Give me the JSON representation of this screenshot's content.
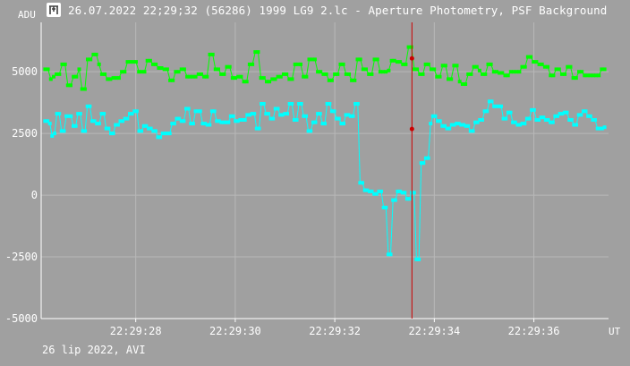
{
  "window": {
    "title": "26.07.2022 22;29;32 (56286) 1999 LG9 2.lc - Aperture Photometry, PSF Background",
    "icon": "telescope-icon"
  },
  "footer": {
    "text": "26 lip 2022, AVI"
  },
  "colors": {
    "background": "#a0a0a0",
    "grid": "#b8b8b8",
    "axis": "#ffffff",
    "series_green": "#00ff00",
    "series_cyan": "#00ffff",
    "cursor": "#cc0000"
  },
  "chart_data": {
    "type": "line",
    "ylabel": "ADU",
    "xunit": "UT",
    "ylim": [
      -5000,
      7000
    ],
    "yticks": [
      -5000,
      -2500,
      0,
      2500,
      5000
    ],
    "ytick_labels": [
      "-5000",
      "-2500",
      "0",
      "2500",
      "5000"
    ],
    "xlim": [
      26.1,
      37.5
    ],
    "xticks": [
      28,
      30,
      32,
      34,
      36
    ],
    "xtick_labels": [
      "22:29:28",
      "22:29:30",
      "22:29:32",
      "22:29:34",
      "22:29:36"
    ],
    "grid": true,
    "cursor_x": 33.55,
    "cursor_markers": [
      5540,
      2680
    ],
    "series": [
      {
        "color": "#00ff00",
        "values": [
          5100,
          5100,
          4700,
          4800,
          4900,
          4900,
          5300,
          5300,
          4450,
          4450,
          4800,
          4800,
          5100,
          4300,
          4300,
          5500,
          5500,
          5700,
          5700,
          5300,
          4900,
          4900,
          4700,
          4700,
          4750,
          4750,
          4750,
          5000,
          5000,
          5400,
          5400,
          5400,
          5400,
          5000,
          5000,
          5000,
          5450,
          5450,
          5300,
          5300,
          5150,
          5150,
          5100,
          5100,
          4650,
          4650,
          5000,
          5000,
          5100,
          5100,
          4800,
          4800,
          4800,
          4800,
          4900,
          4900,
          4800,
          4800,
          5700,
          5700,
          5100,
          5100,
          4900,
          4900,
          5200,
          5200,
          4750,
          4750,
          4800,
          4800,
          4600,
          4600,
          5300,
          5300,
          5800,
          5800,
          4750,
          4750,
          4600,
          4600,
          4700,
          4700,
          4800,
          4800,
          4900,
          4900,
          4700,
          4700,
          5300,
          5300,
          5300,
          4800,
          4800,
          5500,
          5500,
          5500,
          5000,
          5000,
          4900,
          4900,
          4650,
          4650,
          4900,
          4900,
          5300,
          5300,
          4900,
          4900,
          4650,
          4650,
          5500,
          5500,
          5100,
          5100,
          4900,
          4900,
          5500,
          5500,
          5000,
          5000,
          5000,
          5050,
          5450,
          5450,
          5400,
          5400,
          5300,
          5300,
          6000,
          6000,
          5100,
          5100,
          4900,
          4900,
          5300,
          5300,
          5100,
          5100,
          4800,
          4800,
          5250,
          5250,
          4700,
          4700,
          5250,
          5250,
          4600,
          4500,
          4500,
          4900,
          4900,
          5200,
          5200,
          5050,
          4900,
          4900,
          5300,
          5300,
          5000,
          5000,
          4950,
          4950,
          4850,
          4850,
          5000,
          5000,
          5000,
          5000,
          5200,
          5200,
          5600,
          5600,
          5400,
          5400,
          5300,
          5300,
          5200,
          5200,
          4850,
          4850,
          5100,
          5100,
          4900,
          4900,
          5200,
          5200,
          4750,
          4750,
          5000,
          5000,
          4850,
          4850,
          4850,
          4850,
          4850,
          4850,
          5100,
          5100
        ]
      },
      {
        "color": "#00ffff",
        "values": [
          3000,
          3000,
          2900,
          2400,
          2500,
          3300,
          3300,
          2600,
          2600,
          3200,
          3200,
          3200,
          2800,
          2800,
          3300,
          3300,
          2600,
          2600,
          3600,
          3600,
          3000,
          3000,
          2900,
          2900,
          3300,
          3300,
          2700,
          2700,
          2500,
          2500,
          2850,
          2850,
          3000,
          3000,
          3100,
          3100,
          3300,
          3300,
          3400,
          3400,
          2600,
          2600,
          2800,
          2800,
          2700,
          2700,
          2600,
          2600,
          2350,
          2350,
          2500,
          2500,
          2500,
          2500,
          2900,
          2900,
          3100,
          3100,
          3000,
          3000,
          3500,
          3500,
          2900,
          2900,
          3400,
          3400,
          3400,
          2900,
          2900,
          2850,
          2850,
          3400,
          3400,
          3000,
          3000,
          2950,
          2950,
          2950,
          2950,
          3200,
          3200,
          3000,
          3000,
          3050,
          3050,
          3050,
          3250,
          3250,
          3300,
          3300,
          2700,
          2700,
          3700,
          3700,
          3300,
          3300,
          3100,
          3100,
          3500,
          3500,
          3250,
          3250,
          3300,
          3300,
          3700,
          3700,
          3050,
          3050,
          3700,
          3700,
          3200,
          3200,
          2600,
          2600,
          2950,
          2950,
          3300,
          3300,
          2900,
          2900,
          3700,
          3700,
          3400,
          3400,
          3100,
          3100,
          2900,
          2900,
          3250,
          3250,
          3200,
          3200,
          3700,
          3700,
          500,
          500,
          200,
          200,
          150,
          150,
          50,
          50,
          150,
          150,
          -500,
          -500,
          -2400,
          -2400,
          -200,
          -200,
          150,
          150,
          100,
          100,
          -150,
          -150,
          100,
          100,
          -2600,
          -2600,
          1300,
          1300,
          1500,
          1500,
          2900,
          3200,
          3200,
          3000,
          3000,
          2800,
          2800,
          2700,
          2700,
          2850,
          2850,
          2900,
          2900,
          2850,
          2850,
          2800,
          2800,
          2600,
          2600,
          2950,
          2950,
          3050,
          3050,
          3400,
          3400,
          3800,
          3800,
          3600,
          3600,
          3600,
          3600,
          3100,
          3100,
          3350,
          3350,
          2950,
          2950,
          2850,
          2850,
          2900,
          2900,
          3100,
          3100,
          3450,
          3450,
          3050,
          3050,
          3150,
          3150,
          3050,
          3050,
          2950,
          2950,
          3200,
          3200,
          3300,
          3300,
          3350,
          3350,
          3050,
          3050,
          2850,
          2850,
          3250,
          3250,
          3400,
          3400,
          3200,
          3200,
          3050,
          3050,
          2700,
          2700,
          2700,
          2750
        ]
      }
    ]
  }
}
